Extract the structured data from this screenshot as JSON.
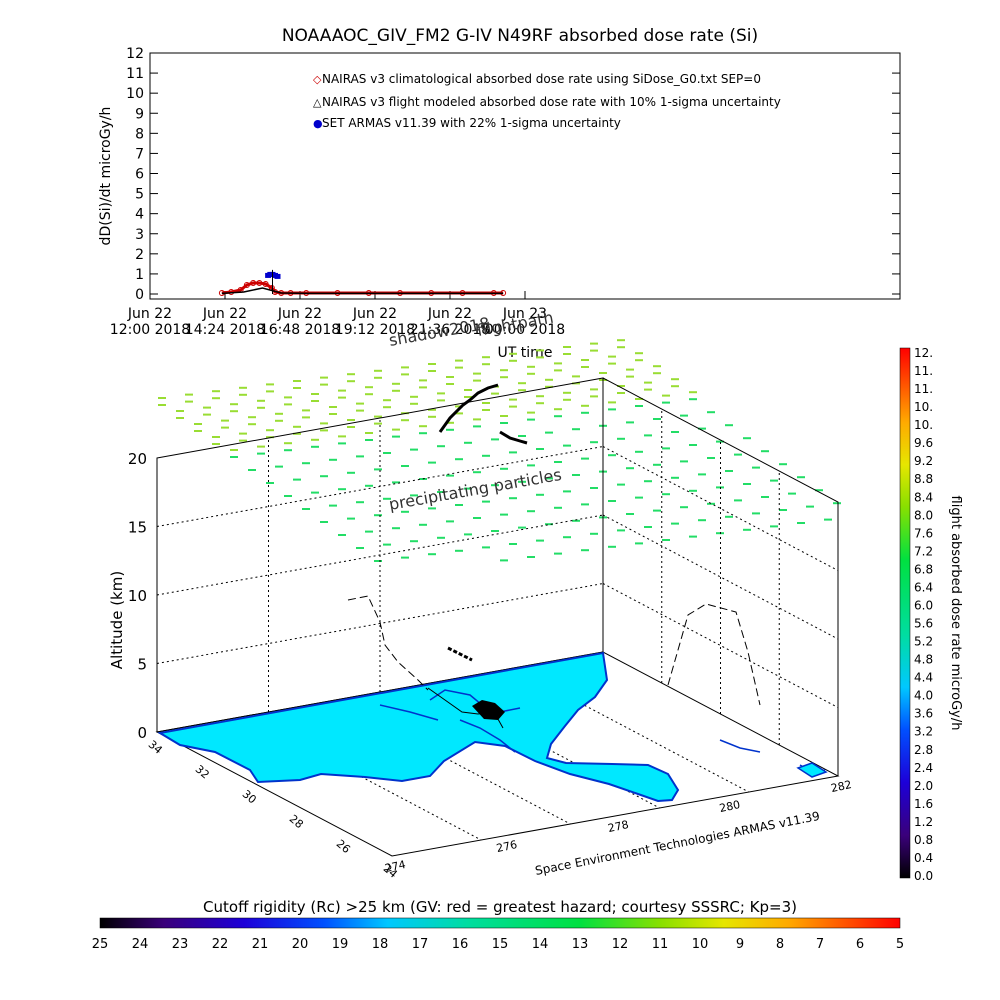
{
  "title": "NOAAAOC_GIV_FM2 G-IV   N49RF  absorbed dose rate (Si)",
  "chart_data": [
    {
      "type": "scatter",
      "ylabel": "dD(Si)/dt microGy/h",
      "xlabel": "UT time",
      "ylim": [
        0,
        12
      ],
      "yticks": [
        "0",
        "1",
        "2",
        "3",
        "4",
        "5",
        "6",
        "7",
        "8",
        "9",
        "10",
        "11",
        "12"
      ],
      "xlim_hours": [
        12,
        36
      ],
      "xticks": [
        {
          "line1": "Jun 22",
          "line2": "12:00 2018",
          "hour": 12
        },
        {
          "line1": "Jun 22",
          "line2": "14:24 2018",
          "hour": 14.4
        },
        {
          "line1": "Jun 22",
          "line2": "16:48 2018",
          "hour": 16.8
        },
        {
          "line1": "Jun 22",
          "line2": "19:12 2018",
          "hour": 19.2
        },
        {
          "line1": "Jun 22",
          "line2": "21:36 2018",
          "hour": 21.6
        },
        {
          "line1": "Jun 23",
          "line2": "00:00 2018",
          "hour": 24
        }
      ],
      "legend": [
        {
          "symbol": "◇",
          "color": "#cc0000",
          "text": "NAIRAS v3 climatological absorbed dose rate using SiDose_G0.txt SEP=0"
        },
        {
          "symbol": "△",
          "color": "#000000",
          "text": "NAIRAS v3 flight modeled absorbed dose rate with 10% 1-sigma uncertainty"
        },
        {
          "symbol": "●",
          "color": "#0000cc",
          "text": "SET ARMAS v11.39 with 22% 1-sigma uncertainty"
        }
      ],
      "series": [
        {
          "name": "NAIRAS v3 climatological",
          "color": "#cc0000",
          "x": [
            14.3,
            14.6,
            14.9,
            15.1,
            15.3,
            15.5,
            15.7,
            15.9,
            16.0,
            16.2,
            16.5,
            17,
            18,
            19,
            20,
            21,
            22,
            23,
            23.3
          ],
          "y": [
            0.05,
            0.1,
            0.2,
            0.45,
            0.55,
            0.55,
            0.5,
            0.3,
            0.1,
            0.05,
            0.05,
            0.05,
            0.05,
            0.05,
            0.05,
            0.05,
            0.05,
            0.05,
            0.05
          ]
        },
        {
          "name": "NAIRAS v3 flight modeled",
          "color": "#000000",
          "x": [
            14.3,
            15.0,
            15.6,
            16.2,
            17,
            18,
            19,
            20,
            21,
            22,
            23,
            23.3
          ],
          "y": [
            0.03,
            0.1,
            0.3,
            0.05,
            0.03,
            0.03,
            0.03,
            0.03,
            0.03,
            0.03,
            0.03,
            0.03
          ]
        },
        {
          "name": "SET ARMAS v11.39",
          "color": "#0000cc",
          "x": [
            15.78,
            15.85,
            15.92,
            16.0,
            16.08
          ],
          "y": [
            0.9,
            0.95,
            0.95,
            0.9,
            0.85
          ]
        }
      ]
    },
    {
      "type": "scatter",
      "ylabel": "Altitude (km)",
      "zticks": [
        "0",
        "5",
        "10",
        "15",
        "20"
      ],
      "lat_ticks": [
        "34",
        "32",
        "30",
        "28",
        "26",
        "24"
      ],
      "lon_ticks": [
        "274",
        "276",
        "278",
        "280",
        "282"
      ],
      "annotations": {
        "shadow": "shadow2018",
        "flightpath": "flightpath",
        "precip": "precipitating particles",
        "credit": "Space Environment Technologies ARMAS v11.39"
      }
    }
  ],
  "colorbar_right": {
    "label": "flight absorbed dose rate microGy/h",
    "ticks": [
      "0.0",
      "0.4",
      "0.8",
      "1.2",
      "1.6",
      "2.0",
      "2.4",
      "2.8",
      "3.2",
      "3.6",
      "4.0",
      "4.4",
      "4.8",
      "5.2",
      "5.6",
      "6.0",
      "6.4",
      "6.8",
      "7.2",
      "7.6",
      "8.0",
      "8.4",
      "8.8",
      "9.2",
      "9.6",
      "10.",
      "10.",
      "11.",
      "11.",
      "12."
    ]
  },
  "colorbar_bottom": {
    "title": "Cutoff rigidity (Rc) >25 km (GV: red = greatest hazard; courtesy SSSRC; Kp=3)",
    "ticks": [
      "25",
      "24",
      "23",
      "22",
      "21",
      "20",
      "19",
      "18",
      "17",
      "16",
      "15",
      "14",
      "13",
      "12",
      "11",
      "10",
      "9",
      "8",
      "7",
      "6",
      "5"
    ]
  },
  "colors": {
    "land": "#00e8ff",
    "coast": "#0033cc",
    "precip": "#22dd66",
    "precip_top": "#99dd33"
  }
}
